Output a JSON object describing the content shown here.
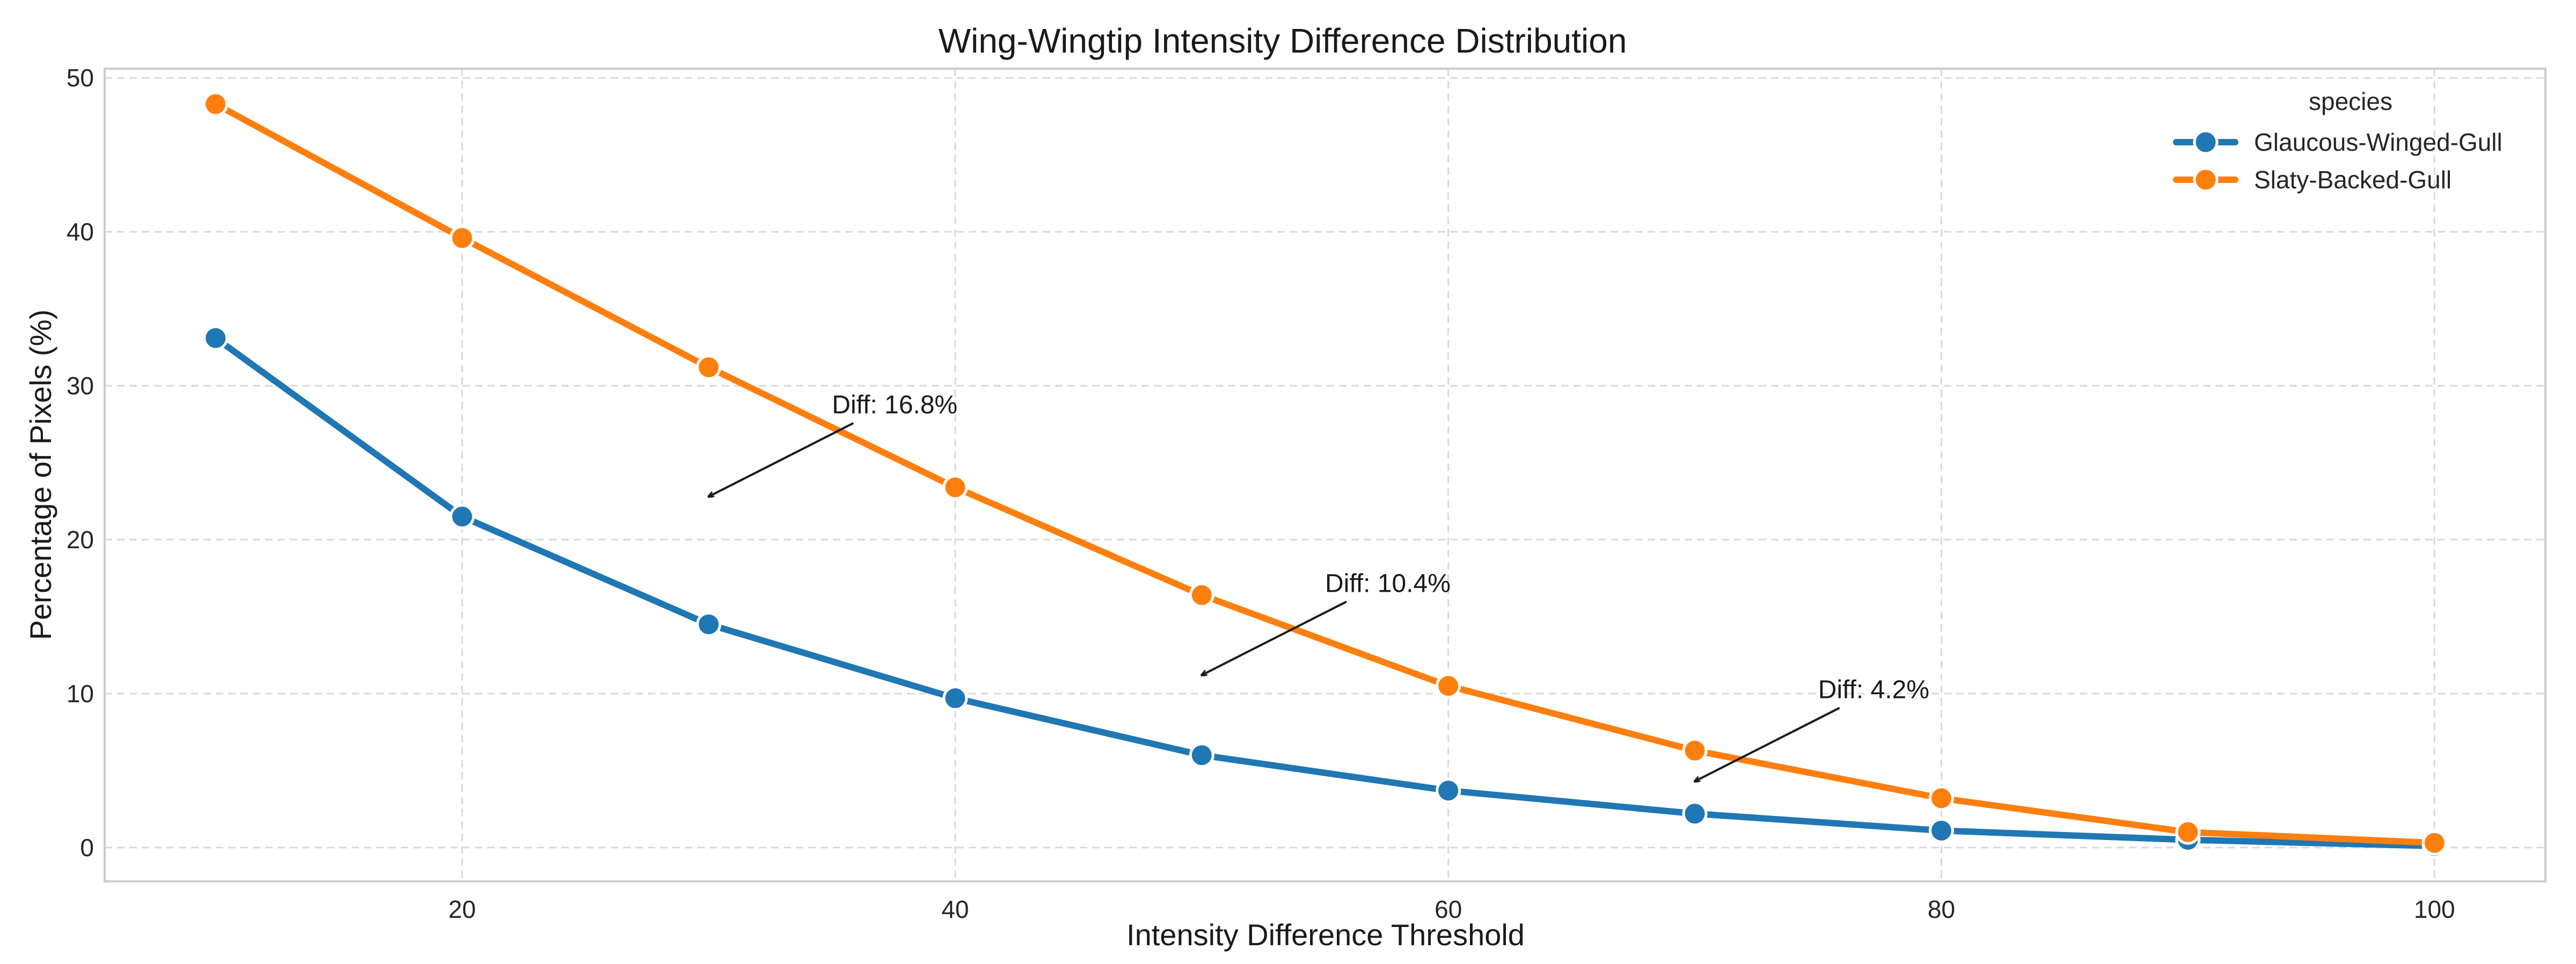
{
  "chart_data": {
    "type": "line",
    "title": "Wing-Wingtip Intensity Difference Distribution",
    "xlabel": "Intensity Difference Threshold",
    "ylabel": "Percentage of Pixels (%)",
    "xlim": [
      5.5,
      104.5
    ],
    "ylim": [
      -2.2,
      50.6
    ],
    "xticks": [
      20,
      40,
      60,
      80,
      100
    ],
    "yticks": [
      0,
      10,
      20,
      30,
      40,
      50
    ],
    "grid": true,
    "legend": {
      "title": "species",
      "placement": "upper right"
    },
    "x": [
      10,
      20,
      30,
      40,
      50,
      60,
      70,
      80,
      90,
      100
    ],
    "series": [
      {
        "name": "Glaucous-Winged-Gull",
        "color": "#1f77b4",
        "values": [
          33.1,
          21.5,
          14.5,
          9.7,
          6.0,
          3.7,
          2.2,
          1.1,
          0.5,
          0.1
        ]
      },
      {
        "name": "Slaty-Backed-Gull",
        "color": "#ff7f0e",
        "values": [
          48.3,
          39.6,
          31.2,
          23.4,
          16.4,
          10.5,
          6.3,
          3.2,
          1.0,
          0.3
        ]
      }
    ],
    "annotations": [
      {
        "text": "Diff: 16.8%",
        "x": 30,
        "y": 22.8,
        "text_x": 35,
        "text_y": 28.2
      },
      {
        "text": "Diff: 10.4%",
        "x": 50,
        "y": 11.2,
        "text_x": 55,
        "text_y": 16.6
      },
      {
        "text": "Diff: 4.2%",
        "x": 70,
        "y": 4.3,
        "text_x": 75,
        "text_y": 9.7
      }
    ]
  }
}
